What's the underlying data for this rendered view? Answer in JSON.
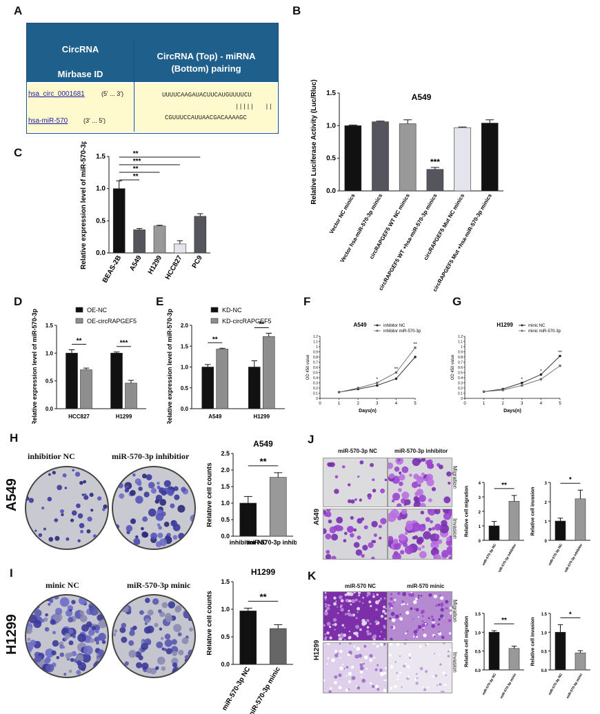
{
  "panels": {
    "A": "A",
    "B": "B",
    "C": "C",
    "D": "D",
    "E": "E",
    "F": "F",
    "G": "G",
    "H": "H",
    "I": "I",
    "J": "J",
    "K": "K"
  },
  "table_a": {
    "col1_header_line1": "CircRNA",
    "col1_header_line2": "Mirbase ID",
    "col2_header_line1": "CircRNA (Top) - miRNA",
    "col2_header_line2": "(Bottom) pairing",
    "circ_id": "hsa_circ_0001681",
    "circ_dir": "(5' ... 3')",
    "mir_id": "hsa-miR-570",
    "mir_dir": "(3' ... 5')",
    "top_seq": "UUUUCAAGAUACUUCAUGUUUUCU",
    "pair_marks": "|||||   ||",
    "bottom_seq": "CGUUUCCAUUAACGACAAAAGC"
  },
  "colony": {
    "H_col1": "inhibitior NC",
    "H_col2": "miR-570-3p inhibitior",
    "H_row": "A549",
    "I_col1": "minic NC",
    "I_col2": "miR-570-3p minic",
    "I_row": "H1299"
  },
  "transwell": {
    "J_col1": "miR-570-3p NC",
    "J_col2": "miR-570-3p inhibitor",
    "J_row": "A549",
    "K_col1": "miR-570 NC",
    "K_col2": "miR-570 minic",
    "K_row": "H1299",
    "migration": "Migration",
    "invasion": "Invasion"
  },
  "chart_data": [
    {
      "id": "B",
      "type": "bar",
      "title": "A549",
      "ylabel": "Relative Luciferase Activity (Luc/Rluc)",
      "ylim": [
        0,
        1.5
      ],
      "yticks": [
        "0.0",
        "0.5",
        "1.0",
        "1.5"
      ],
      "categories": [
        "Vector NC minics",
        "Vector hsa-miR-570-3p minics",
        "circRAPGEF5 WT NC minics",
        "circRAPGEF5 WT +hsa-miR-570-3p minics",
        "circRAPGEF5 Mut NC minics",
        "circRAPGEF5 Mut +hsa-miR-570-3p minics"
      ],
      "values": [
        1.0,
        1.06,
        1.03,
        0.33,
        0.97,
        1.04
      ],
      "errors": [
        0.01,
        0.01,
        0.06,
        0.03,
        0.01,
        0.05
      ],
      "colors": [
        "#111111",
        "#55555e",
        "#999999",
        "#55555e",
        "#e4e4ec",
        "#111111"
      ],
      "annotations": [
        {
          "bar": 3,
          "text": "***"
        }
      ]
    },
    {
      "id": "C",
      "type": "bar",
      "ylabel": "Relative expression level of miR-570-3p",
      "ylim": [
        0,
        1.5
      ],
      "yticks": [
        "0.0",
        "0.5",
        "1.0",
        "1.5"
      ],
      "categories": [
        "BEAS-2B",
        "A549",
        "H1299",
        "HCC827",
        "PC9"
      ],
      "values": [
        1.0,
        0.36,
        0.42,
        0.14,
        0.57
      ],
      "errors": [
        0.12,
        0.02,
        0.01,
        0.05,
        0.04
      ],
      "colors": [
        "#111111",
        "#55555e",
        "#999999",
        "#e4e4ec",
        "#55555e"
      ],
      "brackets": [
        {
          "from": 0,
          "to": 1,
          "text": "**"
        },
        {
          "from": 0,
          "to": 2,
          "text": "**"
        },
        {
          "from": 0,
          "to": 3,
          "text": "***"
        },
        {
          "from": 0,
          "to": 4,
          "text": "**"
        }
      ]
    },
    {
      "id": "D",
      "type": "bar",
      "ylabel": "Relative expression level of miR-570-3p",
      "ylim": [
        0,
        1.5
      ],
      "yticks": [
        "0.0",
        "0.5",
        "1.0",
        "1.5"
      ],
      "categories": [
        "HCC827",
        "H1299"
      ],
      "series": [
        {
          "name": "OE-NC",
          "values": [
            1.0,
            1.0
          ],
          "errors": [
            0.06,
            0.02
          ],
          "color": "#111111"
        },
        {
          "name": "OE-circRAPGEF5",
          "values": [
            0.7,
            0.46
          ],
          "errors": [
            0.03,
            0.05
          ],
          "color": "#8e8e8e"
        }
      ],
      "annotations": [
        "**",
        "***"
      ]
    },
    {
      "id": "E",
      "type": "bar",
      "ylabel": "Relative expression level of miR-570-3p",
      "ylim": [
        0,
        2.0
      ],
      "yticks": [
        "0.0",
        "0.5",
        "1.0",
        "1.5",
        "2.0"
      ],
      "categories": [
        "A549",
        "H1299"
      ],
      "series": [
        {
          "name": "KD-NC",
          "values": [
            1.0,
            1.0
          ],
          "errors": [
            0.06,
            0.15
          ],
          "color": "#111111"
        },
        {
          "name": "KD-circRAPGEF5",
          "values": [
            1.43,
            1.73
          ],
          "errors": [
            0.02,
            0.08
          ],
          "color": "#8e8e8e"
        }
      ],
      "annotations": [
        "**",
        "**"
      ]
    },
    {
      "id": "F",
      "type": "line",
      "title": "A549",
      "xlabel": "Days(n)",
      "ylabel": "OD 450 value",
      "x": [
        1,
        2,
        3,
        4,
        5
      ],
      "xlim": [
        0,
        5
      ],
      "ylim": [
        0,
        1.2
      ],
      "xticks": [
        "0",
        "1",
        "2",
        "3",
        "4",
        "5"
      ],
      "yticks": [
        "0",
        "0.1",
        "0.2",
        "0.3",
        "0.4",
        "0.5",
        "0.6",
        "0.7",
        "0.8",
        "0.9",
        "1",
        "1.1",
        "1.2"
      ],
      "series": [
        {
          "name": "inhibitor NC",
          "values": [
            0.12,
            0.18,
            0.25,
            0.38,
            0.8
          ]
        },
        {
          "name": "inhibitor miR-570-3p",
          "values": [
            0.12,
            0.2,
            0.3,
            0.5,
            0.98
          ]
        }
      ],
      "annotations": [
        {
          "x": 3,
          "text": "*"
        },
        {
          "x": 4,
          "text": "**"
        },
        {
          "x": 5,
          "text": "**"
        }
      ]
    },
    {
      "id": "G",
      "type": "line",
      "title": "H1299",
      "xlabel": "Days(n)",
      "ylabel": "OD 450 value",
      "x": [
        1,
        2,
        3,
        4,
        5
      ],
      "xlim": [
        0,
        5
      ],
      "ylim": [
        0,
        1.2
      ],
      "xticks": [
        "0",
        "1",
        "2",
        "3",
        "4",
        "5"
      ],
      "yticks": [
        "0",
        "0.1",
        "0.2",
        "0.3",
        "0.4",
        "0.5",
        "0.6",
        "0.7",
        "0.8",
        "0.9",
        "1",
        "1.1",
        "1.2"
      ],
      "series": [
        {
          "name": "minic NC",
          "values": [
            0.13,
            0.18,
            0.3,
            0.46,
            0.82
          ]
        },
        {
          "name": "minic miR-570-3p",
          "values": [
            0.13,
            0.16,
            0.25,
            0.37,
            0.63
          ]
        }
      ],
      "annotations": [
        {
          "x": 3,
          "text": "*"
        },
        {
          "x": 4,
          "text": "*"
        },
        {
          "x": 5,
          "text": "**"
        }
      ]
    },
    {
      "id": "H",
      "type": "bar",
      "title": "A549",
      "ylabel": "Relative cell counts",
      "ylim": [
        0,
        2.5
      ],
      "yticks": [
        "0.0",
        "0.5",
        "1.0",
        "1.5",
        "2.0",
        "2.5"
      ],
      "categories": [
        "inhibitior NC",
        "miR-570-3p inhibitior"
      ],
      "values": [
        1.0,
        1.78
      ],
      "errors": [
        0.2,
        0.14
      ],
      "colors": [
        "#111111",
        "#999999"
      ],
      "annotations": [
        "**"
      ]
    },
    {
      "id": "I",
      "type": "bar",
      "title": "H1299",
      "ylabel": "Relative cell counts",
      "ylim": [
        0,
        1.5
      ],
      "yticks": [
        "0.0",
        "0.5",
        "1.0",
        "1.5"
      ],
      "categories": [
        "miR-570-3p NC",
        "miR-570-3p minic"
      ],
      "values": [
        0.97,
        0.65
      ],
      "errors": [
        0.05,
        0.07
      ],
      "colors": [
        "#111111",
        "#666666"
      ],
      "annotations": [
        "**"
      ]
    },
    {
      "id": "J1",
      "type": "bar",
      "ylabel": "Relative cell migration",
      "ylim": [
        0,
        4
      ],
      "yticks": [
        "0",
        "1",
        "2",
        "3",
        "4"
      ],
      "categories": [
        "miR-570-3p NC",
        "miR-570-3p inhibitor"
      ],
      "values": [
        1.0,
        2.7
      ],
      "errors": [
        0.3,
        0.4
      ],
      "colors": [
        "#111111",
        "#999999"
      ],
      "annotations": [
        "**"
      ]
    },
    {
      "id": "J2",
      "type": "bar",
      "ylabel": "Relative cell invasion",
      "ylim": [
        0,
        3
      ],
      "yticks": [
        "0",
        "1",
        "2",
        "3"
      ],
      "categories": [
        "miR-570-3p NC",
        "miR-570-3p inhibitor"
      ],
      "values": [
        1.0,
        2.15
      ],
      "errors": [
        0.15,
        0.45
      ],
      "colors": [
        "#111111",
        "#999999"
      ],
      "annotations": [
        "*"
      ]
    },
    {
      "id": "K1",
      "type": "bar",
      "ylabel": "Relative cell migration",
      "ylim": [
        0,
        1.5
      ],
      "yticks": [
        "0.0",
        "0.5",
        "1.0",
        "1.5"
      ],
      "categories": [
        "miR-570-3p NC",
        "miR-570-3p minic"
      ],
      "values": [
        1.0,
        0.57
      ],
      "errors": [
        0.04,
        0.06
      ],
      "colors": [
        "#111111",
        "#999999"
      ],
      "annotations": [
        "**"
      ]
    },
    {
      "id": "K2",
      "type": "bar",
      "ylabel": "Relative cell invasion",
      "ylim": [
        0,
        1.5
      ],
      "yticks": [
        "0.0",
        "0.5",
        "1.0",
        "1.5"
      ],
      "categories": [
        "miR-570-3p NC",
        "miR-570-3p minic"
      ],
      "values": [
        1.0,
        0.45
      ],
      "errors": [
        0.2,
        0.06
      ],
      "colors": [
        "#111111",
        "#999999"
      ],
      "annotations": [
        "*"
      ]
    }
  ]
}
